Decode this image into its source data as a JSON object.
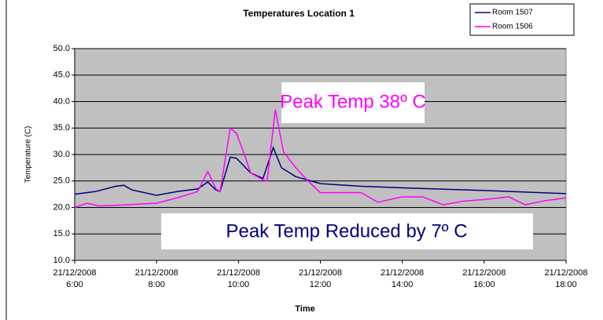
{
  "chart_data": {
    "type": "line",
    "title": "Temperatures Location 1",
    "xlabel": "Time",
    "ylabel": "Temperature (C)",
    "annotations": [
      "Peak Temp 38º C",
      "Peak Temp Reduced by 7º C"
    ],
    "xlim": [
      6,
      18
    ],
    "xticks": [
      {
        "value": 6,
        "label": "21/12/2008 6:00"
      },
      {
        "value": 8,
        "label": "21/12/2008 8:00"
      },
      {
        "value": 10,
        "label": "21/12/2008 10:00"
      },
      {
        "value": 12,
        "label": "21/12/2008 12:00"
      },
      {
        "value": 14,
        "label": "21/12/2008 14:00"
      },
      {
        "value": 16,
        "label": "21/12/2008 16:00"
      },
      {
        "value": 18,
        "label": "21/12/2008 18:00"
      }
    ],
    "ylim": [
      10,
      50
    ],
    "yticks": [
      {
        "value": 10,
        "label": "10.0"
      },
      {
        "value": 15,
        "label": "15.0"
      },
      {
        "value": 20,
        "label": "20.0"
      },
      {
        "value": 25,
        "label": "25.0"
      },
      {
        "value": 30,
        "label": "30.0"
      },
      {
        "value": 35,
        "label": "35.0"
      },
      {
        "value": 40,
        "label": "40.0"
      },
      {
        "value": 45,
        "label": "45.0"
      },
      {
        "value": 50,
        "label": "50.0"
      }
    ],
    "grid": true,
    "legend": "upper right",
    "background": "#c0c0c0",
    "series": [
      {
        "name": "Room 1507",
        "color": "#000080",
        "x": [
          6,
          6.5,
          7,
          7.2,
          7.4,
          8,
          8.5,
          9,
          9.25,
          9.45,
          9.55,
          9.8,
          9.95,
          10.3,
          10.6,
          10.85,
          11.05,
          11.4,
          12,
          13,
          14,
          16,
          18
        ],
        "values": [
          22.5,
          23.0,
          24.0,
          24.2,
          23.3,
          22.3,
          23.0,
          23.5,
          24.8,
          23.3,
          23.0,
          29.5,
          29.3,
          26.5,
          25.5,
          31.3,
          27.5,
          25.8,
          24.5,
          24.0,
          23.7,
          23.2,
          22.6
        ]
      },
      {
        "name": "Room 1506",
        "color": "#ff00ff",
        "x": [
          6,
          6.3,
          6.6,
          7,
          8,
          8.5,
          9,
          9.25,
          9.45,
          9.55,
          9.8,
          9.95,
          10.1,
          10.3,
          10.6,
          10.7,
          10.9,
          11.1,
          11.4,
          11.7,
          12,
          13,
          13.4,
          14,
          14.5,
          15,
          15.5,
          16,
          16.6,
          17,
          17.5,
          18
        ],
        "values": [
          20.0,
          20.8,
          20.3,
          20.4,
          20.8,
          21.8,
          23.0,
          26.8,
          23.5,
          23.0,
          35.0,
          34.0,
          31.0,
          26.5,
          25.2,
          25.0,
          38.5,
          30.5,
          27.5,
          25.0,
          22.8,
          22.8,
          21.0,
          22.0,
          22.0,
          20.5,
          21.2,
          21.5,
          22.0,
          20.5,
          21.3,
          21.8
        ]
      }
    ]
  }
}
